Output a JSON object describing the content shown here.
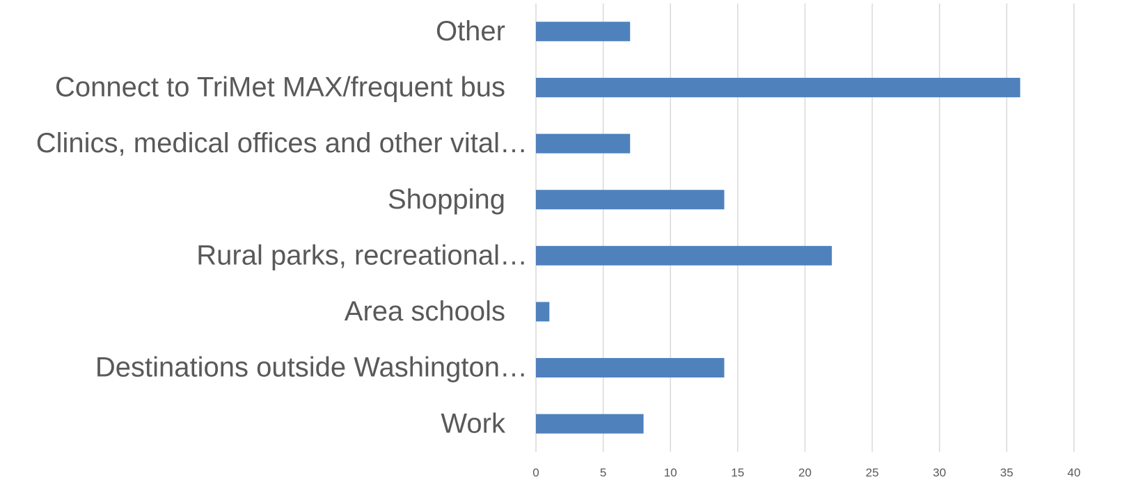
{
  "chart_data": {
    "type": "barh",
    "categories": [
      "Other",
      "Connect to TriMet MAX/frequent bus",
      "Clinics, medical offices and other vital…",
      "Shopping",
      "Rural parks, recreational…",
      "Area schools",
      "Destinations outside Washington…",
      "Work"
    ],
    "values": [
      7,
      36,
      7,
      14,
      22,
      1,
      14,
      8
    ],
    "color": "#4f81bd",
    "xlim": [
      0,
      40
    ],
    "xticks": [
      0,
      5,
      10,
      15,
      20,
      25,
      30,
      35,
      40
    ],
    "grid": true
  }
}
